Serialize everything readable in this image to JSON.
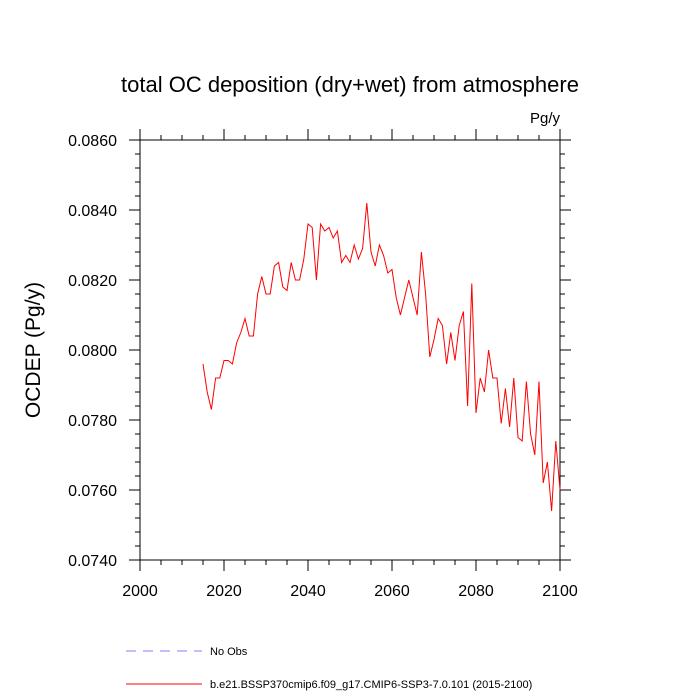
{
  "chart_data": {
    "type": "line",
    "title": "total OC deposition (dry+wet) from atmosphere",
    "units_label": "Pg/y",
    "ylabel": "OCDEP  (Pg/y)",
    "xlabel": "",
    "xlim": [
      2000,
      2100
    ],
    "ylim": [
      0.074,
      0.086
    ],
    "x_ticks": [
      2000,
      2020,
      2040,
      2060,
      2080,
      2100
    ],
    "x_tick_labels": [
      "2000",
      "2020",
      "2040",
      "2060",
      "2080",
      "2100"
    ],
    "y_ticks": [
      0.074,
      0.076,
      0.078,
      0.08,
      0.082,
      0.084,
      0.086
    ],
    "y_tick_labels": [
      "0.0740",
      "0.0760",
      "0.0780",
      "0.0800",
      "0.0820",
      "0.0840",
      "0.0860"
    ],
    "grid": false,
    "legend_position": "bottom",
    "series": [
      {
        "name": "No Obs",
        "color": "#8080ff",
        "dashed": true,
        "values": []
      },
      {
        "name": "b.e21.BSSP370cmip6.f09_g17.CMIP6-SSP3-7.0.101 (2015-2100)",
        "color": "#ff0000",
        "dashed": false,
        "x": [
          2015,
          2016,
          2017,
          2018,
          2019,
          2020,
          2021,
          2022,
          2023,
          2024,
          2025,
          2026,
          2027,
          2028,
          2029,
          2030,
          2031,
          2032,
          2033,
          2034,
          2035,
          2036,
          2037,
          2038,
          2039,
          2040,
          2041,
          2042,
          2043,
          2044,
          2045,
          2046,
          2047,
          2048,
          2049,
          2050,
          2051,
          2052,
          2053,
          2054,
          2055,
          2056,
          2057,
          2058,
          2059,
          2060,
          2061,
          2062,
          2063,
          2064,
          2065,
          2066,
          2067,
          2068,
          2069,
          2070,
          2071,
          2072,
          2073,
          2074,
          2075,
          2076,
          2077,
          2078,
          2079,
          2080,
          2081,
          2082,
          2083,
          2084,
          2085,
          2086,
          2087,
          2088,
          2089,
          2090,
          2091,
          2092,
          2093,
          2094,
          2095,
          2096,
          2097,
          2098,
          2099,
          2100
        ],
        "values": [
          0.0796,
          0.0788,
          0.0783,
          0.0792,
          0.0792,
          0.0797,
          0.0797,
          0.0796,
          0.0802,
          0.0805,
          0.0809,
          0.0804,
          0.0804,
          0.0816,
          0.0821,
          0.0816,
          0.0816,
          0.0824,
          0.0825,
          0.0818,
          0.0817,
          0.0825,
          0.082,
          0.082,
          0.0826,
          0.0836,
          0.0835,
          0.082,
          0.0836,
          0.0834,
          0.0835,
          0.0832,
          0.0834,
          0.0825,
          0.0827,
          0.0825,
          0.083,
          0.0826,
          0.0829,
          0.0842,
          0.0828,
          0.0824,
          0.083,
          0.0827,
          0.0822,
          0.0823,
          0.0815,
          0.081,
          0.0815,
          0.082,
          0.0815,
          0.081,
          0.0828,
          0.0816,
          0.0798,
          0.0803,
          0.0809,
          0.0807,
          0.0796,
          0.0805,
          0.0797,
          0.0807,
          0.0811,
          0.0784,
          0.0819,
          0.0782,
          0.0792,
          0.0788,
          0.08,
          0.0792,
          0.0792,
          0.0779,
          0.0789,
          0.0778,
          0.0792,
          0.0775,
          0.0774,
          0.0791,
          0.0776,
          0.077,
          0.0791,
          0.0762,
          0.0768,
          0.0754,
          0.0774,
          0.076
        ]
      }
    ]
  }
}
